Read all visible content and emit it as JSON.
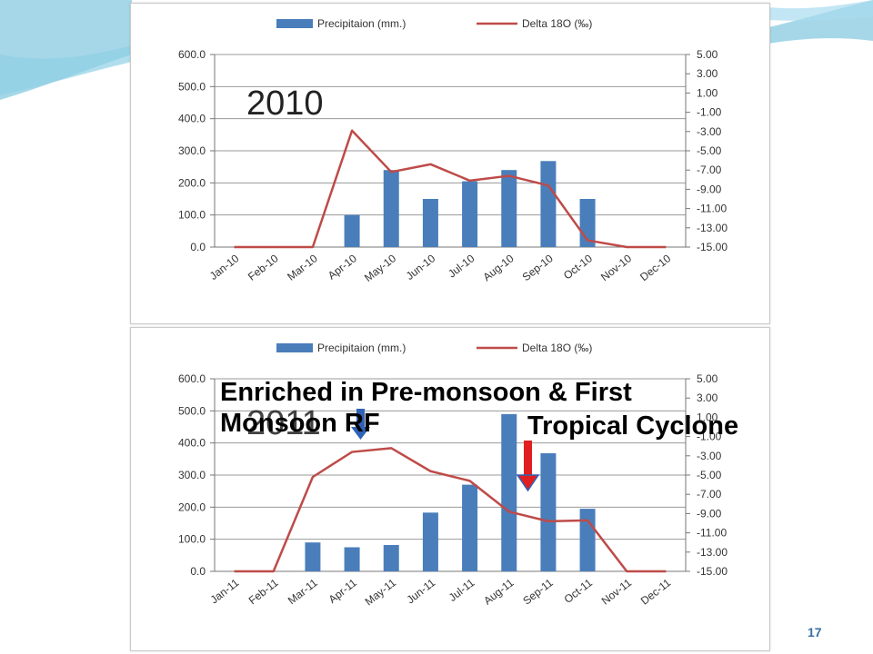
{
  "slide": {
    "number": "17"
  },
  "legend": {
    "bar_label": "Precipitaion (mm.)",
    "line_label": "Delta 18O (‰)"
  },
  "annotations": {
    "enriched": "Enriched in Pre-monsoon & First Monsoon RF",
    "cyclone": "Tropical Cyclone"
  },
  "colors": {
    "bars": "#4a7ebb",
    "line": "#be4b48",
    "arrow_blue": "#2f62b7",
    "arrow_red": "#e02020"
  },
  "chart_data": [
    {
      "type": "bar",
      "year_label": "2010",
      "categories": [
        "Jan-10",
        "Feb-10",
        "Mar-10",
        "Apr-10",
        "May-10",
        "Jun-10",
        "Jul-10",
        "Aug-10",
        "Sep-10",
        "Oct-10",
        "Nov-10",
        "Dec-10"
      ],
      "series": [
        {
          "name": "Precipitaion (mm.)",
          "type": "bar",
          "axis": "left",
          "values": [
            0,
            0,
            0,
            100,
            240,
            150,
            205,
            240,
            268,
            150,
            0,
            0
          ]
        },
        {
          "name": "Delta 18O (‰)",
          "type": "line",
          "axis": "right",
          "values": [
            -15,
            -15,
            -15,
            -2.9,
            -7.2,
            -6.4,
            -8.1,
            -7.6,
            -8.6,
            -14.3,
            -15,
            -15
          ]
        }
      ],
      "ylim_left": [
        0,
        600
      ],
      "yticks_left": [
        "0.0",
        "100.0",
        "200.0",
        "300.0",
        "400.0",
        "500.0",
        "600.0"
      ],
      "ylim_right": [
        -15,
        5
      ],
      "yticks_right": [
        "-15.00",
        "-13.00",
        "-11.00",
        "-9.00",
        "-7.00",
        "-5.00",
        "-3.00",
        "-1.00",
        "1.00",
        "3.00",
        "5.00"
      ],
      "grid": true,
      "legend_position": "top"
    },
    {
      "type": "bar",
      "year_label": "2011",
      "categories": [
        "Jan-11",
        "Feb-11",
        "Mar-11",
        "Apr-11",
        "May-11",
        "Jun-11",
        "Jul-11",
        "Aug-11",
        "Sep-11",
        "Oct-11",
        "Nov-11",
        "Dec-11"
      ],
      "series": [
        {
          "name": "Precipitaion (mm.)",
          "type": "bar",
          "axis": "left",
          "values": [
            0,
            0,
            90,
            75,
            82,
            183,
            270,
            490,
            368,
            195,
            0,
            0
          ]
        },
        {
          "name": "Delta 18O (‰)",
          "type": "line",
          "axis": "right",
          "values": [
            -15,
            -15,
            -5.2,
            -2.6,
            -2.2,
            -4.6,
            -5.6,
            -8.8,
            -9.8,
            -9.7,
            -15,
            -15
          ]
        }
      ],
      "ylim_left": [
        0,
        600
      ],
      "yticks_left": [
        "0.0",
        "100.0",
        "200.0",
        "300.0",
        "400.0",
        "500.0",
        "600.0"
      ],
      "ylim_right": [
        -15,
        5
      ],
      "yticks_right": [
        "-15.00",
        "-13.00",
        "-11.00",
        "-9.00",
        "-7.00",
        "-5.00",
        "-3.00",
        "-1.00",
        "1.00",
        "3.00",
        "5.00"
      ],
      "grid": true,
      "legend_position": "top"
    }
  ]
}
